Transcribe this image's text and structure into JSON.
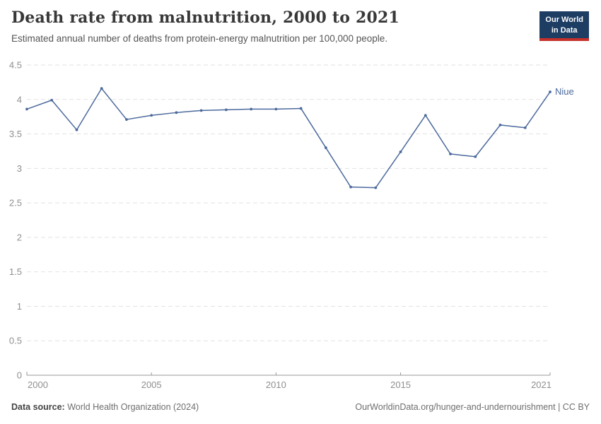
{
  "header": {
    "title": "Death rate from malnutrition, 2000 to 2021",
    "subtitle": "Estimated annual number of deaths from protein-energy malnutrition per 100,000 people.",
    "logo": {
      "line1": "Our World",
      "line2": "in Data"
    }
  },
  "chart_data": {
    "type": "line",
    "title": "Death rate from malnutrition, 2000 to 2021",
    "xlabel": "",
    "ylabel": "",
    "x": [
      2000,
      2001,
      2002,
      2003,
      2004,
      2005,
      2006,
      2007,
      2008,
      2009,
      2010,
      2011,
      2012,
      2013,
      2014,
      2015,
      2016,
      2017,
      2018,
      2019,
      2020,
      2021
    ],
    "series": [
      {
        "name": "Niue",
        "color": "#4C6A9C",
        "values": [
          3.86,
          3.99,
          3.56,
          4.16,
          3.71,
          3.77,
          3.81,
          3.84,
          3.85,
          3.86,
          3.86,
          3.87,
          3.3,
          2.73,
          2.72,
          3.24,
          3.77,
          3.21,
          3.17,
          3.63,
          3.59,
          4.11
        ]
      }
    ],
    "ylim": [
      0,
      4.5
    ],
    "yticks": [
      0,
      0.5,
      1,
      1.5,
      2,
      2.5,
      3,
      3.5,
      4,
      4.5
    ],
    "xticks": [
      2000,
      2005,
      2010,
      2015,
      2021
    ],
    "grid": "horizontal-dashed",
    "legend_position": "end-of-line-label"
  },
  "footer": {
    "source_label": "Data source:",
    "source_text": "World Health Organization (2024)",
    "attribution": "OurWorldinData.org/hunger-and-undernourishment | CC BY"
  },
  "colors": {
    "line": "#4C6A9C",
    "grid": "#e2e2e2",
    "axis": "#9a9a9a",
    "tick_label": "#8f8f8f",
    "logo_bg": "#1d3d63",
    "logo_accent": "#c5302b"
  }
}
